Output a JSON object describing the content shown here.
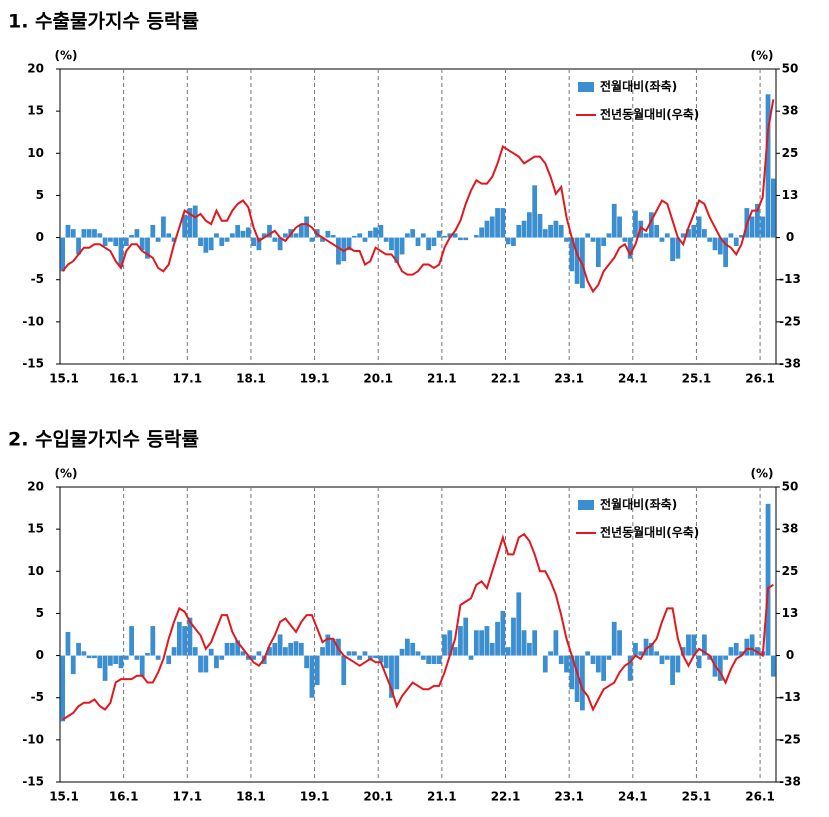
{
  "chart_data": [
    {
      "type": "bar-line",
      "title": "1. 수출물가지수 등락률",
      "y_label": "(%)",
      "y2_label": "(%)",
      "categories": [
        "15.1",
        null,
        null,
        null,
        null,
        null,
        null,
        null,
        null,
        null,
        null,
        null,
        "16.1",
        null,
        null,
        null,
        null,
        null,
        null,
        null,
        null,
        null,
        null,
        null,
        "17.1",
        null,
        null,
        null,
        null,
        null,
        null,
        null,
        null,
        null,
        null,
        null,
        "18.1",
        null,
        null,
        null,
        null,
        null,
        null,
        null,
        null,
        null,
        null,
        null,
        "19.1",
        null,
        null,
        null,
        null,
        null,
        null,
        null,
        null,
        null,
        null,
        null,
        "20.1",
        null,
        null,
        null,
        null,
        null,
        null,
        null,
        null,
        null,
        null,
        null,
        "21.1",
        null,
        null,
        null,
        null,
        null,
        null,
        null,
        null,
        null,
        null,
        null,
        "22.1",
        null,
        null,
        null,
        null,
        null,
        null,
        null,
        null,
        null,
        null,
        null,
        "23.1",
        null,
        null,
        null,
        null,
        null,
        null,
        null,
        null,
        null,
        null,
        null,
        "24.1",
        null,
        null,
        null,
        null,
        null,
        null,
        null,
        null,
        null,
        null,
        null,
        "25.1",
        null,
        null,
        null,
        null,
        null,
        null,
        null,
        null,
        null,
        null,
        null,
        "26.1",
        null,
        null
      ],
      "series": [
        {
          "name": "전월대비(좌축)",
          "color": "#3b8fd0",
          "kind": "bar",
          "axis": "y",
          "values": [
            -4,
            1.5,
            1,
            -2,
            1,
            1,
            1,
            0.5,
            -1,
            -0.5,
            -1,
            -3.5,
            -1,
            0.3,
            1,
            -1.5,
            -2.5,
            1.5,
            -0.5,
            2.5,
            0.5,
            -0.5,
            0,
            2.7,
            3.5,
            3.8,
            -1,
            -1.8,
            -1.5,
            0.5,
            -1,
            -0.5,
            0.5,
            1.5,
            0.8,
            1.2,
            -1,
            -1.5,
            0.5,
            1.5,
            -0.5,
            -1.5,
            0.5,
            1,
            0.5,
            1.5,
            2.5,
            -0.5,
            1,
            -0.5,
            0.8,
            0.3,
            -3.2,
            -2.8,
            -1.5,
            0.2,
            0.5,
            -0.5,
            0.8,
            1.2,
            1.5,
            -0.5,
            -1.5,
            -3,
            -2,
            0.5,
            1,
            -1,
            0.5,
            -1.5,
            -1,
            0.8,
            0.2,
            0.5,
            0.5,
            -0.3,
            -0.3,
            0,
            0.3,
            1.2,
            2,
            2.5,
            3.5,
            3.5,
            -0.8,
            -1,
            1.5,
            2,
            3,
            6.2,
            2.8,
            1,
            1.5,
            2,
            1.5,
            -0.5,
            -4,
            -5.5,
            -6,
            0.5,
            -0.5,
            -3.5,
            -1,
            0.5,
            4,
            2.5,
            -0.5,
            -2.5,
            3.2,
            2,
            0.5,
            3,
            1.5,
            -0.5,
            0.5,
            -2.8,
            -2.5,
            0.5,
            1,
            1.5,
            2.5,
            1,
            -0.5,
            -1.5,
            -2,
            -3.5,
            0.5,
            -1,
            0.3,
            3.5,
            2.5,
            4,
            2.5,
            17,
            7
          ]
        },
        {
          "name": "전년동월대비(우축)",
          "color": "#e0191f",
          "kind": "line",
          "axis": "y2",
          "values": [
            -10,
            -8,
            -7,
            -5,
            -3,
            -3,
            -2,
            -2,
            -3,
            -4,
            -7,
            -9,
            -4,
            -2,
            -2,
            -4,
            -5,
            -6,
            -9,
            -10,
            -8,
            -2,
            3,
            8,
            7,
            6,
            7,
            5,
            4,
            8,
            5,
            5,
            8,
            10,
            11,
            9,
            3,
            -1,
            0,
            1,
            2,
            0,
            -1,
            1,
            3,
            4,
            4,
            3,
            1,
            0,
            -1,
            -2,
            -3,
            -4,
            -3,
            -4,
            -4,
            -8,
            -7,
            -3,
            -4,
            -5,
            -5,
            -7,
            -10,
            -11,
            -11,
            -10,
            -8,
            -8,
            -9,
            -8,
            -3,
            0,
            2,
            5,
            10,
            14,
            17,
            16,
            16,
            18,
            22,
            27,
            26,
            25,
            24,
            22,
            23,
            24,
            24,
            22,
            18,
            13,
            15,
            6,
            0,
            -5,
            -8,
            -13,
            -16,
            -14,
            -10,
            -8,
            -6,
            -3,
            -2,
            -5,
            -2,
            3,
            2,
            5,
            8,
            11,
            10,
            5,
            0,
            -2,
            3,
            7,
            11,
            10,
            6,
            3,
            0,
            -2,
            -3,
            -5,
            -2,
            4,
            8,
            8,
            12,
            32,
            41
          ]
        }
      ],
      "ylim": [
        -15,
        20
      ],
      "yticks": [
        -15,
        -10,
        -5,
        0,
        5,
        10,
        15,
        20
      ],
      "y2lim": [
        -37.5,
        50
      ],
      "y2ticks": [
        {
          "value": -37.5,
          "label": "-38"
        },
        -25,
        {
          "value": -12.5,
          "label": "-13"
        },
        0,
        {
          "value": 12.5,
          "label": "13"
        },
        25,
        {
          "value": 37.5,
          "label": "38"
        },
        50
      ],
      "xgrid": true,
      "legend": "top-right"
    },
    {
      "type": "bar-line",
      "title": "2. 수입물가지수 등락률",
      "y_label": "(%)",
      "y2_label": "(%)",
      "categories": [
        "15.1",
        null,
        null,
        null,
        null,
        null,
        null,
        null,
        null,
        null,
        null,
        null,
        "16.1",
        null,
        null,
        null,
        null,
        null,
        null,
        null,
        null,
        null,
        null,
        null,
        "17.1",
        null,
        null,
        null,
        null,
        null,
        null,
        null,
        null,
        null,
        null,
        null,
        "18.1",
        null,
        null,
        null,
        null,
        null,
        null,
        null,
        null,
        null,
        null,
        null,
        "19.1",
        null,
        null,
        null,
        null,
        null,
        null,
        null,
        null,
        null,
        null,
        null,
        "20.1",
        null,
        null,
        null,
        null,
        null,
        null,
        null,
        null,
        null,
        null,
        null,
        "21.1",
        null,
        null,
        null,
        null,
        null,
        null,
        null,
        null,
        null,
        null,
        null,
        "22.1",
        null,
        null,
        null,
        null,
        null,
        null,
        null,
        null,
        null,
        null,
        null,
        "23.1",
        null,
        null,
        null,
        null,
        null,
        null,
        null,
        null,
        null,
        null,
        null,
        "24.1",
        null,
        null,
        null,
        null,
        null,
        null,
        null,
        null,
        null,
        null,
        null,
        "25.1",
        null,
        null,
        null,
        null,
        null,
        null,
        null,
        null,
        null,
        null,
        null,
        "26.1",
        null,
        null
      ],
      "series": [
        {
          "name": "전월대비(좌축)",
          "color": "#3b8fd0",
          "kind": "bar",
          "axis": "y",
          "values": [
            -7.8,
            2.8,
            -2.2,
            1.5,
            0.5,
            -0.3,
            -0.3,
            -1.5,
            -3,
            -1.2,
            -1,
            -1.5,
            -0.5,
            3.5,
            -0.5,
            -2.5,
            0.3,
            3.5,
            -0.5,
            0,
            -1,
            1,
            4,
            3.5,
            4.5,
            1,
            -2,
            -2,
            0.8,
            -1.5,
            -0.5,
            1.5,
            1.5,
            1.8,
            0.5,
            -0.5,
            -0.5,
            0.5,
            -1,
            1,
            1.5,
            2.5,
            1,
            1.5,
            1.7,
            1.5,
            -1.5,
            -5,
            -3.5,
            1,
            2.5,
            2,
            2,
            -3.5,
            0.5,
            0.5,
            -0.5,
            0.5,
            -0.5,
            -0.3,
            -0.8,
            -1.5,
            -5,
            -4,
            0.8,
            2,
            1.5,
            0.5,
            -0.5,
            -1,
            -1,
            -1,
            2.5,
            3,
            1,
            3.5,
            4.5,
            -0.5,
            3,
            3,
            3.5,
            1.5,
            4,
            5.3,
            1,
            4.5,
            7.5,
            3,
            1.5,
            3,
            0,
            -2,
            0.5,
            3,
            -1,
            -2,
            -4,
            -5.5,
            -6.5,
            0.5,
            -1,
            -2,
            -3,
            -0.5,
            4,
            3,
            0,
            -3,
            1.5,
            0.5,
            2,
            1.5,
            0.5,
            -1,
            -0.5,
            -3.5,
            -2,
            1,
            2.5,
            2.5,
            -1.5,
            2.5,
            -0.5,
            -2.5,
            -3,
            -0.5,
            1,
            1.5,
            0.5,
            2,
            2.5,
            1,
            0.5,
            18,
            -2.5
          ]
        },
        {
          "name": "전년동월대비(우축)",
          "color": "#e0191f",
          "kind": "line",
          "axis": "y2",
          "values": [
            -19,
            -18,
            -17,
            -15,
            -14,
            -14,
            -13,
            -15,
            -16,
            -14,
            -8,
            -7,
            -7,
            -7,
            -6,
            -6,
            -8,
            -8,
            -5,
            -1,
            5,
            10,
            14,
            13,
            10,
            8,
            6,
            2,
            4,
            8,
            12,
            12,
            7,
            4,
            2,
            0,
            -2,
            -3,
            -1,
            3,
            6,
            10,
            11,
            9,
            7,
            10,
            12,
            12,
            8,
            4,
            5,
            5,
            2,
            0,
            -1,
            -2,
            -3,
            -2,
            -1,
            -2,
            -2,
            -6,
            -10,
            -15,
            -12,
            -10,
            -8,
            -9,
            -10,
            -10,
            -9,
            -9,
            -5,
            0,
            5,
            15,
            16,
            17,
            21,
            22,
            20,
            25,
            30,
            35,
            30,
            30,
            35,
            36,
            34,
            30,
            25,
            25,
            22,
            18,
            12,
            5,
            0,
            -5,
            -10,
            -12,
            -16,
            -13,
            -10,
            -9,
            -8,
            -5,
            -3,
            -2,
            0,
            -1,
            2,
            3,
            5,
            10,
            14,
            14,
            5,
            0,
            -3,
            0,
            2,
            1,
            0,
            -3,
            -5,
            -8,
            -4,
            -1,
            0,
            2,
            2,
            1,
            0,
            20,
            21
          ]
        }
      ],
      "ylim": [
        -15,
        20
      ],
      "yticks": [
        -15,
        -10,
        -5,
        0,
        5,
        10,
        15,
        20
      ],
      "y2lim": [
        -37.5,
        50
      ],
      "y2ticks": [
        {
          "value": -37.5,
          "label": "-38"
        },
        -25,
        {
          "value": -12.5,
          "label": "-13"
        },
        0,
        {
          "value": 12.5,
          "label": "13"
        },
        25,
        {
          "value": 37.5,
          "label": "38"
        },
        50
      ],
      "xgrid": true,
      "legend": "top-right"
    }
  ]
}
